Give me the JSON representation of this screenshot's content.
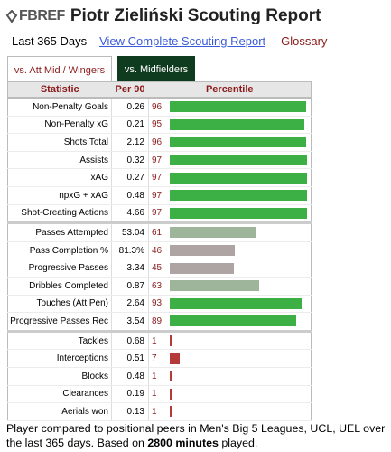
{
  "header": {
    "logo_text": "FBREF",
    "title": "Piotr Zieliński Scouting Report"
  },
  "subnav": {
    "period": "Last 365 Days",
    "full_report_link": "View Complete Scouting Report",
    "glossary_link": "Glossary"
  },
  "tabs": [
    {
      "label": "vs. Att Mid / Wingers",
      "active": false
    },
    {
      "label": "vs. Midfielders",
      "active": true
    }
  ],
  "table": {
    "headers": {
      "statistic": "Statistic",
      "per90": "Per 90",
      "percentile": "Percentile"
    },
    "rows": [
      {
        "stat": "Non-Penalty Goals",
        "per90": "0.26",
        "percentile": 96,
        "color": "#3cb044",
        "group_end": false
      },
      {
        "stat": "Non-Penalty xG",
        "per90": "0.21",
        "percentile": 95,
        "color": "#3cb044",
        "group_end": false
      },
      {
        "stat": "Shots Total",
        "per90": "2.12",
        "percentile": 96,
        "color": "#3cb044",
        "group_end": false
      },
      {
        "stat": "Assists",
        "per90": "0.32",
        "percentile": 97,
        "color": "#3cb044",
        "group_end": false
      },
      {
        "stat": "xAG",
        "per90": "0.27",
        "percentile": 97,
        "color": "#3cb044",
        "group_end": false
      },
      {
        "stat": "npxG + xAG",
        "per90": "0.48",
        "percentile": 97,
        "color": "#3cb044",
        "group_end": false
      },
      {
        "stat": "Shot-Creating Actions",
        "per90": "4.66",
        "percentile": 97,
        "color": "#3cb044",
        "group_end": true
      },
      {
        "stat": "Passes Attempted",
        "per90": "53.04",
        "percentile": 61,
        "color": "#9eb59b",
        "group_end": false
      },
      {
        "stat": "Pass Completion %",
        "per90": "81.3%",
        "percentile": 46,
        "color": "#aea4a4",
        "group_end": false
      },
      {
        "stat": "Progressive Passes",
        "per90": "3.34",
        "percentile": 45,
        "color": "#aea4a4",
        "group_end": false
      },
      {
        "stat": "Dribbles Completed",
        "per90": "0.87",
        "percentile": 63,
        "color": "#9eb59b",
        "group_end": false
      },
      {
        "stat": "Touches (Att Pen)",
        "per90": "2.64",
        "percentile": 93,
        "color": "#3cb044",
        "group_end": false
      },
      {
        "stat": "Progressive Passes Rec",
        "per90": "3.54",
        "percentile": 89,
        "color": "#3cb044",
        "group_end": true
      },
      {
        "stat": "Tackles",
        "per90": "0.68",
        "percentile": 1,
        "color": "#b53a3a",
        "group_end": false
      },
      {
        "stat": "Interceptions",
        "per90": "0.51",
        "percentile": 7,
        "color": "#b53a3a",
        "group_end": false
      },
      {
        "stat": "Blocks",
        "per90": "0.48",
        "percentile": 1,
        "color": "#b53a3a",
        "group_end": false
      },
      {
        "stat": "Clearances",
        "per90": "0.19",
        "percentile": 1,
        "color": "#b53a3a",
        "group_end": false
      },
      {
        "stat": "Aerials won",
        "per90": "0.13",
        "percentile": 1,
        "color": "#b53a3a",
        "group_end": false
      }
    ]
  },
  "footer": {
    "text_before": "Player compared to positional peers in Men's Big 5 Leagues, UCL, UEL over the last 365 days. Based on ",
    "minutes": "2800 minutes",
    "text_after": " played."
  },
  "colors": {
    "title": "#222222",
    "link": "#3a5bd9",
    "accent_red": "#8b1a1a",
    "active_tab": "#0f3b1e",
    "high": "#3cb044",
    "mid_green": "#9eb59b",
    "mid_gray": "#aea4a4",
    "low": "#b53a3a"
  }
}
